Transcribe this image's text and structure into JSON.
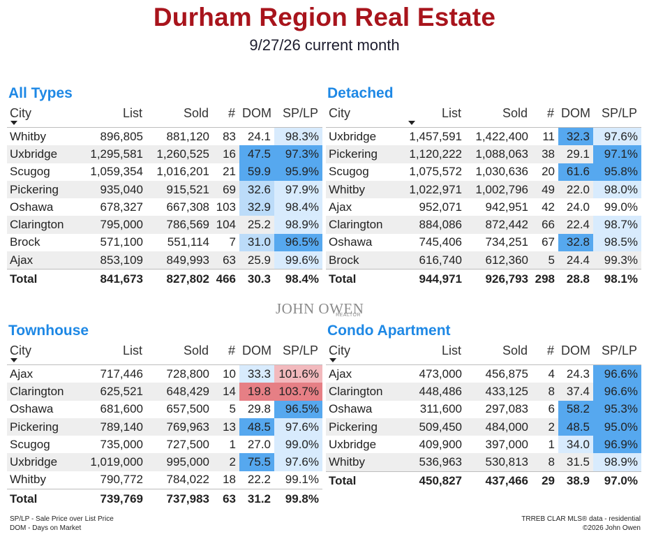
{
  "header": {
    "title": "Durham Region Real Estate",
    "subtitle": "9/27/26 current month"
  },
  "columns": {
    "city": "City",
    "list": "List",
    "sold": "Sold",
    "count": "#",
    "dom": "DOM",
    "splp": "SP/LP"
  },
  "colors": {
    "title": "#a8141c",
    "panel_title": "#1e88e5",
    "heat_blue_light": "#d8ebfd",
    "heat_blue_mid": "#bcdcf9",
    "heat_blue_strong": "#56a8ef",
    "heat_red": "#e67f85",
    "heat_red_light": "#f2b9bd"
  },
  "panels": [
    {
      "title": "All Types",
      "sort_column": "City",
      "rows": [
        {
          "city": "Whitby",
          "list": "896,805",
          "sold": "881,120",
          "count": "83",
          "dom": "24.1",
          "splp": "98.3%",
          "dom_heat": "",
          "splp_heat": "light"
        },
        {
          "city": "Uxbridge",
          "list": "1,295,581",
          "sold": "1,260,525",
          "count": "16",
          "dom": "47.5",
          "splp": "97.3%",
          "dom_heat": "strong",
          "splp_heat": "strong"
        },
        {
          "city": "Scugog",
          "list": "1,059,354",
          "sold": "1,016,201",
          "count": "21",
          "dom": "59.9",
          "splp": "95.9%",
          "dom_heat": "strong",
          "splp_heat": "strong"
        },
        {
          "city": "Pickering",
          "list": "935,040",
          "sold": "915,521",
          "count": "69",
          "dom": "32.6",
          "splp": "97.9%",
          "dom_heat": "mid",
          "splp_heat": "light"
        },
        {
          "city": "Oshawa",
          "list": "678,327",
          "sold": "667,308",
          "count": "103",
          "dom": "32.9",
          "splp": "98.4%",
          "dom_heat": "mid",
          "splp_heat": "light"
        },
        {
          "city": "Clarington",
          "list": "795,000",
          "sold": "786,569",
          "count": "104",
          "dom": "25.2",
          "splp": "98.9%",
          "dom_heat": "",
          "splp_heat": "light"
        },
        {
          "city": "Brock",
          "list": "571,100",
          "sold": "551,114",
          "count": "7",
          "dom": "31.0",
          "splp": "96.5%",
          "dom_heat": "mid",
          "splp_heat": "strong"
        },
        {
          "city": "Ajax",
          "list": "853,109",
          "sold": "849,993",
          "count": "63",
          "dom": "25.9",
          "splp": "99.6%",
          "dom_heat": "",
          "splp_heat": "light"
        }
      ],
      "total": {
        "label": "Total",
        "list": "841,673",
        "sold": "827,802",
        "count": "466",
        "dom": "30.3",
        "splp": "98.4%"
      }
    },
    {
      "title": "Detached",
      "sort_column": "List",
      "rows": [
        {
          "city": "Uxbridge",
          "list": "1,457,591",
          "sold": "1,422,400",
          "count": "11",
          "dom": "32.3",
          "splp": "97.6%",
          "dom_heat": "strong",
          "splp_heat": "light"
        },
        {
          "city": "Pickering",
          "list": "1,120,222",
          "sold": "1,088,063",
          "count": "38",
          "dom": "29.1",
          "splp": "97.1%",
          "dom_heat": "",
          "splp_heat": "strong"
        },
        {
          "city": "Scugog",
          "list": "1,075,572",
          "sold": "1,030,636",
          "count": "20",
          "dom": "61.6",
          "splp": "95.8%",
          "dom_heat": "strong",
          "splp_heat": "strong"
        },
        {
          "city": "Whitby",
          "list": "1,022,971",
          "sold": "1,002,796",
          "count": "49",
          "dom": "22.0",
          "splp": "98.0%",
          "dom_heat": "",
          "splp_heat": "light"
        },
        {
          "city": "Ajax",
          "list": "952,071",
          "sold": "942,951",
          "count": "42",
          "dom": "24.0",
          "splp": "99.0%",
          "dom_heat": "",
          "splp_heat": ""
        },
        {
          "city": "Clarington",
          "list": "884,086",
          "sold": "872,442",
          "count": "66",
          "dom": "22.4",
          "splp": "98.7%",
          "dom_heat": "",
          "splp_heat": "light"
        },
        {
          "city": "Oshawa",
          "list": "745,406",
          "sold": "734,251",
          "count": "67",
          "dom": "32.8",
          "splp": "98.5%",
          "dom_heat": "strong",
          "splp_heat": "light"
        },
        {
          "city": "Brock",
          "list": "616,740",
          "sold": "612,360",
          "count": "5",
          "dom": "24.4",
          "splp": "99.3%",
          "dom_heat": "",
          "splp_heat": ""
        }
      ],
      "total": {
        "label": "Total",
        "list": "944,971",
        "sold": "926,793",
        "count": "298",
        "dom": "28.8",
        "splp": "98.1%"
      }
    },
    {
      "title": "Townhouse",
      "sort_column": "City",
      "rows": [
        {
          "city": "Ajax",
          "list": "717,446",
          "sold": "728,800",
          "count": "10",
          "dom": "33.3",
          "splp": "101.6%",
          "dom_heat": "light",
          "splp_heat": "red_light"
        },
        {
          "city": "Clarington",
          "list": "625,521",
          "sold": "648,429",
          "count": "14",
          "dom": "19.8",
          "splp": "103.7%",
          "dom_heat": "red",
          "splp_heat": "red"
        },
        {
          "city": "Oshawa",
          "list": "681,600",
          "sold": "657,500",
          "count": "5",
          "dom": "29.8",
          "splp": "96.5%",
          "dom_heat": "",
          "splp_heat": "strong"
        },
        {
          "city": "Pickering",
          "list": "789,140",
          "sold": "769,963",
          "count": "13",
          "dom": "48.5",
          "splp": "97.6%",
          "dom_heat": "strong",
          "splp_heat": "light"
        },
        {
          "city": "Scugog",
          "list": "735,000",
          "sold": "727,500",
          "count": "1",
          "dom": "27.0",
          "splp": "99.0%",
          "dom_heat": "",
          "splp_heat": "light"
        },
        {
          "city": "Uxbridge",
          "list": "1,019,000",
          "sold": "995,000",
          "count": "2",
          "dom": "75.5",
          "splp": "97.6%",
          "dom_heat": "strong",
          "splp_heat": "light"
        },
        {
          "city": "Whitby",
          "list": "790,772",
          "sold": "784,022",
          "count": "18",
          "dom": "22.2",
          "splp": "99.1%",
          "dom_heat": "",
          "splp_heat": ""
        }
      ],
      "total": {
        "label": "Total",
        "list": "739,769",
        "sold": "737,983",
        "count": "63",
        "dom": "31.2",
        "splp": "99.8%"
      }
    },
    {
      "title": "Condo Apartment",
      "sort_column": "City",
      "rows": [
        {
          "city": "Ajax",
          "list": "473,000",
          "sold": "456,875",
          "count": "4",
          "dom": "24.3",
          "splp": "96.6%",
          "dom_heat": "",
          "splp_heat": "strong"
        },
        {
          "city": "Clarington",
          "list": "448,486",
          "sold": "433,125",
          "count": "8",
          "dom": "37.4",
          "splp": "96.6%",
          "dom_heat": "",
          "splp_heat": "strong"
        },
        {
          "city": "Oshawa",
          "list": "311,600",
          "sold": "297,083",
          "count": "6",
          "dom": "58.2",
          "splp": "95.3%",
          "dom_heat": "strong",
          "splp_heat": "strong"
        },
        {
          "city": "Pickering",
          "list": "509,450",
          "sold": "484,000",
          "count": "2",
          "dom": "48.5",
          "splp": "95.0%",
          "dom_heat": "strong",
          "splp_heat": "strong"
        },
        {
          "city": "Uxbridge",
          "list": "409,900",
          "sold": "397,000",
          "count": "1",
          "dom": "34.0",
          "splp": "96.9%",
          "dom_heat": "light",
          "splp_heat": "strong"
        },
        {
          "city": "Whitby",
          "list": "536,963",
          "sold": "530,813",
          "count": "8",
          "dom": "31.5",
          "splp": "98.9%",
          "dom_heat": "",
          "splp_heat": "light"
        }
      ],
      "total": {
        "label": "Total",
        "list": "450,827",
        "sold": "437,466",
        "count": "29",
        "dom": "38.9",
        "splp": "97.0%"
      }
    }
  ],
  "logo": {
    "name": "JOHN OWEN",
    "tagline": "REALTOR"
  },
  "footer": {
    "left_line1": "SP/LP - Sale Price over List Price",
    "left_line2": "DOM - Days on Market",
    "right_line1": "TRREB CLAR MLS® data - residential",
    "right_line2": "©2026 John Owen"
  }
}
